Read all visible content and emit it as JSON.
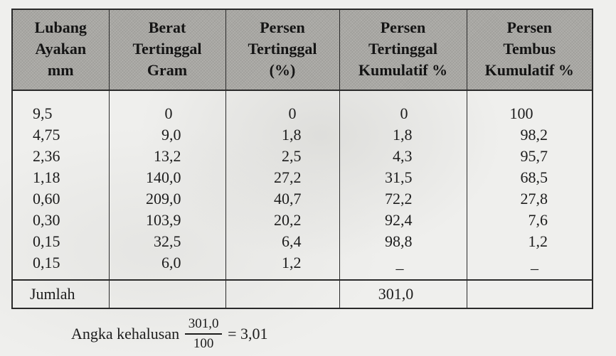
{
  "table": {
    "headers": [
      [
        "Lubang",
        "Ayakan",
        "mm"
      ],
      [
        "Berat",
        "Tertinggal",
        "Gram"
      ],
      [
        "Persen",
        "Tertinggal",
        "(%)"
      ],
      [
        "Persen",
        "Tertinggal",
        "Kumulatif %"
      ],
      [
        "Persen",
        "Tembus",
        "Kumulatif %"
      ]
    ],
    "columns": {
      "sieve_mm": [
        "9,5",
        "4,75",
        "2,36",
        "1,18",
        "0,60",
        "0,30",
        "0,15",
        "0,15"
      ],
      "weight_retained_g": [
        "0",
        "9,0",
        "13,2",
        "140,0",
        "209,0",
        "103,9",
        "32,5",
        "6,0"
      ],
      "percent_retained": [
        "0",
        "1,8",
        "2,5",
        "27,2",
        "40,7",
        "20,2",
        "6,4",
        "1,2"
      ],
      "cumulative_retained": [
        "0",
        "1,8",
        "4,3",
        "31,5",
        "72,2",
        "92,4",
        "98,8",
        "_"
      ],
      "cumulative_passing": [
        "100",
        "98,2",
        "95,7",
        "68,5",
        "27,8",
        "7,6",
        "1,2",
        "_"
      ]
    },
    "total": {
      "label": "Jumlah",
      "cumulative_retained": "301,0"
    }
  },
  "fineness_modulus": {
    "label": "Angka kehalusan",
    "numerator": "301,0",
    "denominator": "100",
    "result": "= 3,01"
  }
}
